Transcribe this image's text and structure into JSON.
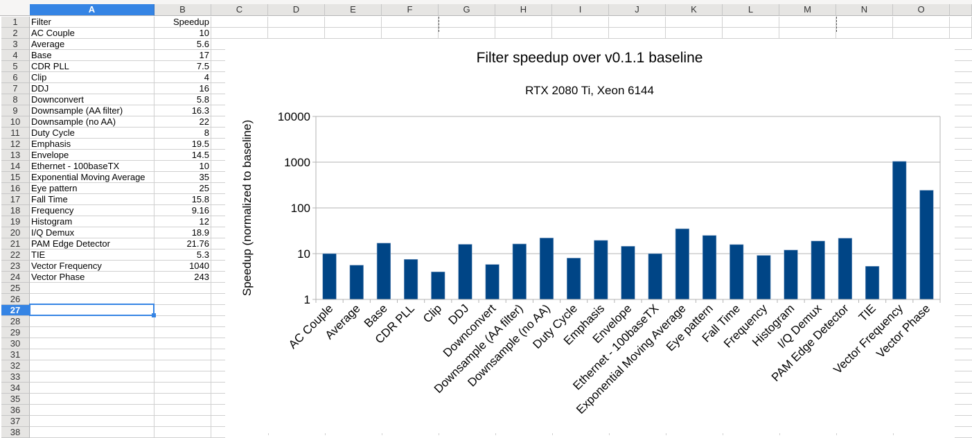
{
  "spreadsheet": {
    "columns": [
      "A",
      "B",
      "C",
      "D",
      "E",
      "F",
      "G",
      "H",
      "I",
      "J",
      "K",
      "L",
      "M",
      "N",
      "O"
    ],
    "selected_column": "A",
    "selected_row": "27",
    "rows": [
      "1",
      "2",
      "3",
      "4",
      "5",
      "6",
      "7",
      "8",
      "9",
      "10",
      "11",
      "12",
      "13",
      "14",
      "15",
      "16",
      "17",
      "18",
      "19",
      "20",
      "21",
      "22",
      "23",
      "24",
      "25",
      "26",
      "27",
      "28",
      "29",
      "30",
      "31",
      "32",
      "33",
      "34",
      "35",
      "36",
      "37",
      "38"
    ],
    "header_row": {
      "filter": "Filter",
      "speedup": "Speedup"
    },
    "data_rows": [
      {
        "filter": "AC Couple",
        "speedup": "10"
      },
      {
        "filter": "Average",
        "speedup": "5.6"
      },
      {
        "filter": "Base",
        "speedup": "17"
      },
      {
        "filter": "CDR PLL",
        "speedup": "7.5"
      },
      {
        "filter": "Clip",
        "speedup": "4"
      },
      {
        "filter": "DDJ",
        "speedup": "16"
      },
      {
        "filter": "Downconvert",
        "speedup": "5.8"
      },
      {
        "filter": "Downsample (AA filter)",
        "speedup": "16.3"
      },
      {
        "filter": "Downsample (no AA)",
        "speedup": "22"
      },
      {
        "filter": "Duty Cycle",
        "speedup": "8"
      },
      {
        "filter": "Emphasis",
        "speedup": "19.5"
      },
      {
        "filter": "Envelope",
        "speedup": "14.5"
      },
      {
        "filter": "Ethernet - 100baseTX",
        "speedup": "10"
      },
      {
        "filter": "Exponential Moving Average",
        "speedup": "35"
      },
      {
        "filter": "Eye pattern",
        "speedup": "25"
      },
      {
        "filter": "Fall Time",
        "speedup": "15.8"
      },
      {
        "filter": "Frequency",
        "speedup": "9.16"
      },
      {
        "filter": "Histogram",
        "speedup": "12"
      },
      {
        "filter": "I/Q Demux",
        "speedup": "18.9"
      },
      {
        "filter": "PAM Edge Detector",
        "speedup": "21.76"
      },
      {
        "filter": "TIE",
        "speedup": "5.3"
      },
      {
        "filter": "Vector Frequency",
        "speedup": "1040"
      },
      {
        "filter": "Vector Phase",
        "speedup": "243"
      }
    ]
  },
  "colors": {
    "bar": "#004586",
    "selection": "#3584e4",
    "grid": "#b3b3b3"
  },
  "chart_data": {
    "type": "bar",
    "title": "Filter speedup over v0.1.1 baseline",
    "subtitle": "RTX 2080 Ti, Xeon 6144",
    "xlabel": "",
    "ylabel": "Speedup (normalized to baseline)",
    "yscale": "log",
    "ylim": [
      1,
      10000
    ],
    "yticks": [
      1,
      10,
      100,
      1000,
      10000
    ],
    "ytick_labels": [
      "1",
      "10",
      "100",
      "1000",
      "10000"
    ],
    "grid": true,
    "legend": "none",
    "categories": [
      "AC Couple",
      "Average",
      "Base",
      "CDR PLL",
      "Clip",
      "DDJ",
      "Downconvert",
      "Downsample (AA filter)",
      "Downsample (no AA)",
      "Duty Cycle",
      "Emphasis",
      "Envelope",
      "Ethernet - 100baseTX",
      "Exponential Moving Average",
      "Eye pattern",
      "Fall Time",
      "Frequency",
      "Histogram",
      "I/Q Demux",
      "PAM Edge Detector",
      "TIE",
      "Vector Frequency",
      "Vector Phase"
    ],
    "values": [
      10,
      5.6,
      17,
      7.5,
      4,
      16,
      5.8,
      16.3,
      22,
      8,
      19.5,
      14.5,
      10,
      35,
      25,
      15.8,
      9.16,
      12,
      18.9,
      21.76,
      5.3,
      1040,
      243
    ]
  }
}
